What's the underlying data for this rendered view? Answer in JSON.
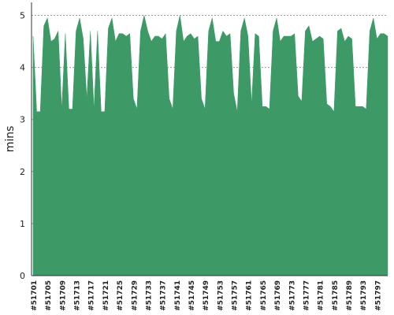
{
  "chart_data": {
    "type": "area",
    "ylabel": "mins",
    "xlabel": "",
    "title": "",
    "ylim": [
      0,
      5.25
    ],
    "yticks": [
      0,
      1,
      2,
      3,
      4,
      5
    ],
    "grid": true,
    "fill_color": "#3d9a67",
    "grid_color": "#999999",
    "x": [
      "#51701",
      "#51702",
      "#51703",
      "#51704",
      "#51705",
      "#51706",
      "#51707",
      "#51708",
      "#51709",
      "#51710",
      "#51711",
      "#51712",
      "#51713",
      "#51714",
      "#51715",
      "#51716",
      "#51717",
      "#51718",
      "#51719",
      "#51720",
      "#51721",
      "#51722",
      "#51723",
      "#51724",
      "#51725",
      "#51726",
      "#51727",
      "#51728",
      "#51729",
      "#51730",
      "#51731",
      "#51732",
      "#51733",
      "#51734",
      "#51735",
      "#51736",
      "#51737",
      "#51738",
      "#51739",
      "#51740",
      "#51741",
      "#51742",
      "#51743",
      "#51744",
      "#51745",
      "#51746",
      "#51747",
      "#51748",
      "#51749",
      "#51750",
      "#51751",
      "#51752",
      "#51753",
      "#51754",
      "#51755",
      "#51756",
      "#51757",
      "#51758",
      "#51759",
      "#51760",
      "#51761",
      "#51762",
      "#51763",
      "#51764",
      "#51765",
      "#51766",
      "#51767",
      "#51768",
      "#51769",
      "#51770",
      "#51771",
      "#51772",
      "#51773",
      "#51774",
      "#51775",
      "#51776",
      "#51777",
      "#51778",
      "#51779",
      "#51780",
      "#51781",
      "#51782",
      "#51783",
      "#51784",
      "#51785",
      "#51786",
      "#51787",
      "#51788",
      "#51789",
      "#51790",
      "#51791",
      "#51792",
      "#51793",
      "#51794",
      "#51795",
      "#51796",
      "#51797",
      "#51798",
      "#51799",
      "#51800"
    ],
    "values": [
      4.6,
      3.15,
      3.15,
      4.8,
      4.95,
      4.5,
      4.55,
      4.7,
      3.2,
      4.65,
      3.2,
      3.2,
      4.7,
      4.95,
      4.55,
      3.4,
      4.7,
      3.2,
      4.7,
      3.15,
      3.15,
      4.75,
      4.95,
      4.5,
      4.65,
      4.65,
      4.6,
      4.65,
      3.4,
      3.2,
      4.7,
      5.0,
      4.7,
      4.5,
      4.6,
      4.6,
      4.55,
      4.65,
      3.4,
      3.2,
      4.7,
      5.0,
      4.5,
      4.6,
      4.65,
      4.55,
      4.6,
      3.4,
      3.2,
      4.7,
      4.95,
      4.5,
      4.5,
      4.7,
      4.6,
      4.65,
      3.5,
      3.15,
      4.7,
      4.95,
      4.6,
      3.3,
      4.65,
      4.6,
      3.25,
      3.25,
      3.2,
      4.7,
      4.95,
      4.5,
      4.6,
      4.6,
      4.6,
      4.65,
      3.45,
      3.35,
      4.7,
      4.8,
      4.5,
      4.55,
      4.6,
      4.55,
      3.3,
      3.25,
      3.15,
      4.7,
      4.75,
      4.5,
      4.6,
      4.55,
      3.25,
      3.25,
      3.25,
      3.2,
      4.7,
      4.95,
      4.55,
      4.65,
      4.65,
      4.6
    ],
    "xtick_labels": [
      "#51701",
      "#51705",
      "#51709",
      "#51713",
      "#51717",
      "#51721",
      "#51725",
      "#51729",
      "#51733",
      "#51737",
      "#51741",
      "#51745",
      "#51749",
      "#51753",
      "#51757",
      "#51761",
      "#51765",
      "#51769",
      "#51773",
      "#51777",
      "#51781",
      "#51785",
      "#51789",
      "#51793",
      "#51797"
    ]
  }
}
